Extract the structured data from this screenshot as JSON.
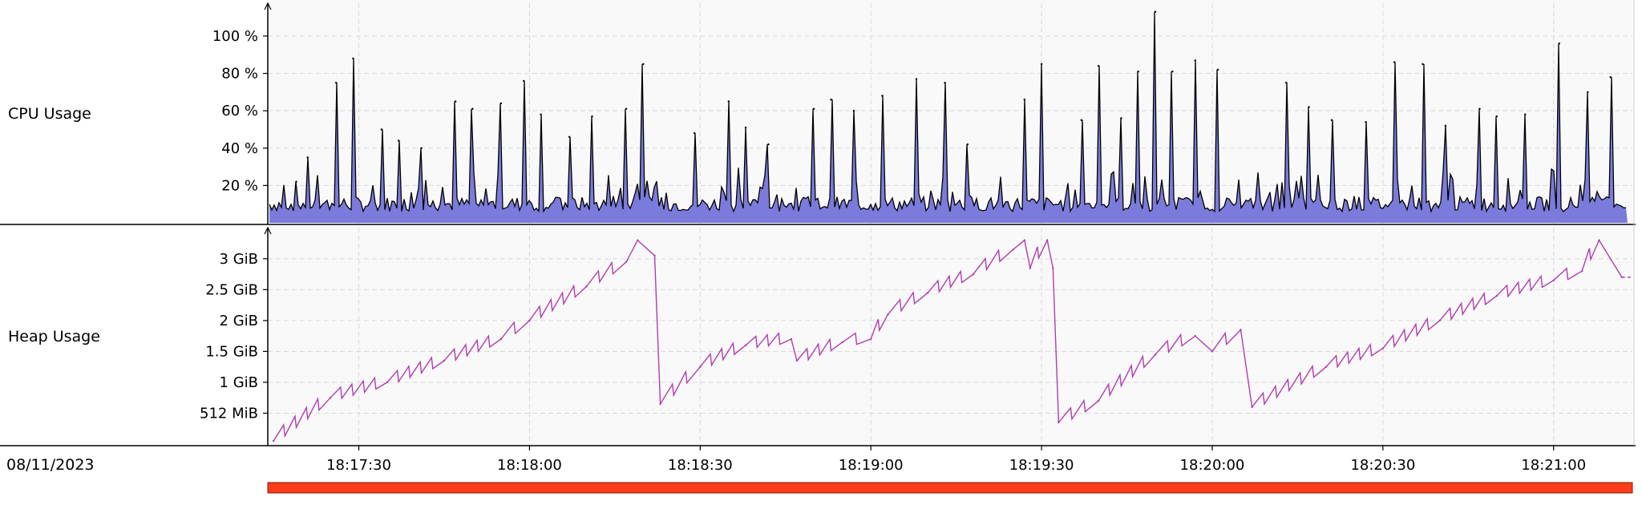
{
  "labels": {
    "cpu": "CPU Usage",
    "heap": "Heap Usage",
    "date": "08/11/2023"
  },
  "colors": {
    "background": "#ffffff",
    "plot_background": "#f9f9f9",
    "grid": "#d9d9d9",
    "cpu_fill": "#7b7bdc",
    "cpu_line": "#000000",
    "heap_line": "#b23cb0",
    "range_bar": "#ff3b1a"
  },
  "chart_data": [
    {
      "type": "area",
      "ylabel": "CPU Usage",
      "yticks": [
        "20 %",
        "40 %",
        "60 %",
        "80 %",
        "100 %"
      ],
      "ytick_values": [
        20,
        40,
        60,
        80,
        100
      ],
      "ylim": [
        0,
        115
      ],
      "x": [
        "18:17:19",
        "18:17:21",
        "18:17:26",
        "18:17:29",
        "18:17:34",
        "18:17:37",
        "18:17:41",
        "18:17:47",
        "18:17:50",
        "18:17:55",
        "18:17:59",
        "18:18:02",
        "18:18:07",
        "18:18:11",
        "18:18:17",
        "18:18:20",
        "18:18:29",
        "18:18:35",
        "18:18:38",
        "18:18:42",
        "18:18:50",
        "18:18:53",
        "18:18:57",
        "18:19:02",
        "18:19:08",
        "18:19:13",
        "18:19:17",
        "18:19:27",
        "18:19:30",
        "18:19:37",
        "18:19:40",
        "18:19:44",
        "18:19:47",
        "18:19:50",
        "18:19:53",
        "18:19:57",
        "18:20:01",
        "18:20:13",
        "18:20:17",
        "18:20:21",
        "18:20:27",
        "18:20:32",
        "18:20:37",
        "18:20:41",
        "18:20:47",
        "18:20:50",
        "18:20:55",
        "18:21:01",
        "18:21:06",
        "18:21:10"
      ],
      "values": [
        22,
        35,
        75,
        88,
        50,
        44,
        40,
        65,
        61,
        64,
        76,
        58,
        46,
        57,
        61,
        85,
        48,
        65,
        51,
        42,
        61,
        66,
        60,
        68,
        77,
        75,
        42,
        66,
        85,
        55,
        84,
        56,
        81,
        113,
        81,
        87,
        82,
        75,
        62,
        55,
        54,
        86,
        85,
        52,
        61,
        57,
        58,
        96,
        70,
        78
      ],
      "baseline": 6
    },
    {
      "type": "line",
      "ylabel": "Heap Usage",
      "yticks": [
        "512 MiB",
        "1 GiB",
        "1.5 GiB",
        "2 GiB",
        "2.5 GiB",
        "3 GiB"
      ],
      "ytick_values": [
        0.5,
        1,
        1.5,
        2,
        2.5,
        3
      ],
      "ylim": [
        0,
        3.4
      ],
      "x": [
        "18:17:15",
        "18:17:25",
        "18:17:35",
        "18:17:45",
        "18:17:55",
        "18:18:00",
        "18:18:10",
        "18:18:17",
        "18:18:19",
        "18:18:22",
        "18:18:23",
        "18:18:30",
        "18:18:38",
        "18:18:46",
        "18:18:47",
        "18:18:55",
        "18:19:00",
        "18:19:03",
        "18:19:10",
        "18:19:18",
        "18:19:25",
        "18:19:27",
        "18:19:28",
        "18:19:31",
        "18:19:32",
        "18:19:33",
        "18:19:40",
        "18:19:50",
        "18:19:57",
        "18:20:00",
        "18:20:05",
        "18:20:07",
        "18:20:20",
        "18:20:30",
        "18:20:40",
        "18:20:50",
        "18:21:00",
        "18:21:05",
        "18:21:08",
        "18:21:12"
      ],
      "values": [
        0.05,
        0.75,
        1.0,
        1.35,
        1.7,
        2.0,
        2.55,
        2.95,
        3.3,
        3.05,
        0.65,
        1.25,
        1.6,
        1.7,
        1.35,
        1.65,
        1.7,
        2.1,
        2.45,
        2.75,
        3.15,
        3.3,
        2.85,
        3.3,
        2.85,
        0.35,
        0.7,
        1.45,
        1.75,
        1.5,
        1.85,
        0.6,
        1.25,
        1.55,
        2.0,
        2.4,
        2.65,
        2.8,
        3.3,
        2.7
      ],
      "end_value": 2.7
    }
  ],
  "time_axis": {
    "ticks": [
      "18:17:30",
      "18:18:00",
      "18:18:30",
      "18:19:00",
      "18:19:30",
      "18:20:00",
      "18:20:30",
      "18:21:00"
    ],
    "start": "18:17:14",
    "end": "18:21:13"
  }
}
